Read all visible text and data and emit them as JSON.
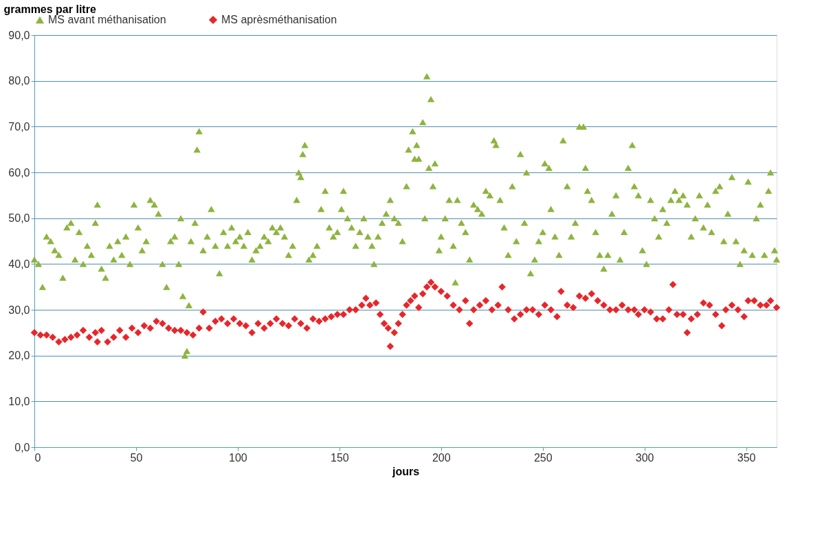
{
  "chart_data": {
    "type": "scatter",
    "xlabel": "jours",
    "ylabel": "grammes par litre",
    "xlim": [
      0,
      365
    ],
    "xticks": [
      0,
      50,
      100,
      150,
      200,
      250,
      300,
      350
    ],
    "ylim": [
      0,
      90
    ],
    "yticks": [
      {
        "value": 0,
        "label": "0,0"
      },
      {
        "value": 10,
        "label": "10,0"
      },
      {
        "value": 20,
        "label": "20,0"
      },
      {
        "value": 30,
        "label": "30,0"
      },
      {
        "value": 40,
        "label": "40,0"
      },
      {
        "value": 50,
        "label": "50,0"
      },
      {
        "value": 60,
        "label": "60,0"
      },
      {
        "value": 70,
        "label": "70,0"
      },
      {
        "value": 80,
        "label": "80,0"
      },
      {
        "value": 90,
        "label": "90,0"
      }
    ],
    "grid": "y",
    "legend": "top",
    "series": [
      {
        "name": "MS avant méthanisation",
        "color": "#8db43e",
        "marker": "triangle",
        "x": [
          0,
          2,
          4,
          6,
          8,
          10,
          12,
          14,
          16,
          18,
          20,
          22,
          24,
          26,
          28,
          30,
          31,
          33,
          35,
          37,
          39,
          41,
          43,
          45,
          47,
          49,
          51,
          53,
          55,
          57,
          59,
          61,
          63,
          65,
          67,
          69,
          71,
          72,
          73,
          74,
          75,
          76,
          77,
          79,
          80,
          81,
          83,
          85,
          87,
          89,
          91,
          93,
          95,
          97,
          99,
          101,
          103,
          105,
          107,
          109,
          111,
          113,
          115,
          117,
          119,
          121,
          123,
          125,
          127,
          129,
          130,
          131,
          132,
          133,
          135,
          137,
          139,
          141,
          143,
          145,
          147,
          149,
          151,
          152,
          154,
          156,
          158,
          160,
          162,
          164,
          166,
          167,
          169,
          171,
          173,
          175,
          177,
          179,
          181,
          183,
          184,
          186,
          187,
          188,
          189,
          191,
          192,
          193,
          194,
          195,
          196,
          197,
          199,
          200,
          202,
          204,
          206,
          207,
          208,
          210,
          212,
          214,
          216,
          218,
          220,
          222,
          224,
          226,
          227,
          229,
          231,
          233,
          235,
          237,
          239,
          241,
          242,
          244,
          246,
          248,
          250,
          251,
          253,
          254,
          256,
          258,
          260,
          262,
          264,
          266,
          268,
          270,
          271,
          272,
          274,
          276,
          278,
          280,
          282,
          284,
          286,
          288,
          290,
          292,
          294,
          295,
          297,
          299,
          301,
          303,
          305,
          307,
          309,
          311,
          313,
          315,
          317,
          319,
          321,
          323,
          325,
          327,
          329,
          331,
          333,
          335,
          337,
          339,
          341,
          343,
          345,
          347,
          349,
          351,
          353,
          355,
          357,
          359,
          361,
          362,
          364,
          365
        ],
        "values": [
          41,
          40,
          35,
          46,
          45,
          43,
          42,
          37,
          48,
          49,
          41,
          47,
          40,
          44,
          42,
          49,
          53,
          39,
          37,
          44,
          41,
          45,
          42,
          46,
          40,
          53,
          48,
          43,
          45,
          54,
          53,
          51,
          40,
          35,
          45,
          46,
          40,
          50,
          33,
          20,
          21,
          31,
          45,
          49,
          65,
          69,
          43,
          46,
          52,
          44,
          38,
          47,
          44,
          48,
          45,
          46,
          44,
          47,
          41,
          43,
          44,
          46,
          45,
          48,
          47,
          48,
          46,
          42,
          44,
          54,
          60,
          59,
          64,
          66,
          41,
          42,
          44,
          52,
          56,
          48,
          46,
          47,
          52,
          56,
          50,
          48,
          44,
          47,
          50,
          46,
          44,
          40,
          46,
          49,
          51,
          54,
          50,
          49,
          45,
          57,
          65,
          69,
          63,
          66,
          63,
          71,
          50,
          81,
          61,
          76,
          57,
          62,
          43,
          46,
          50,
          54,
          44,
          36,
          54,
          49,
          47,
          41,
          53,
          52,
          51,
          56,
          55,
          67,
          66,
          54,
          48,
          42,
          57,
          45,
          64,
          49,
          60,
          38,
          41,
          45,
          47,
          62,
          61,
          52,
          46,
          42,
          67,
          57,
          46,
          49,
          70,
          70,
          61,
          56,
          54,
          47,
          42,
          39,
          42,
          51,
          55,
          41,
          47,
          61,
          66,
          57,
          55,
          43,
          40,
          54,
          50,
          46,
          52,
          49,
          54,
          56,
          54,
          55,
          53,
          46,
          50,
          55,
          48,
          53,
          47,
          56,
          57,
          45,
          51,
          59,
          45,
          40,
          43,
          58,
          42,
          50,
          53,
          42,
          56,
          60,
          43,
          41
        ]
      },
      {
        "name": "MS aprèsméthanisation",
        "color": "#e8262a",
        "marker": "diamond",
        "x": [
          0,
          3,
          6,
          9,
          12,
          15,
          18,
          21,
          24,
          27,
          30,
          31,
          33,
          36,
          39,
          42,
          45,
          48,
          51,
          54,
          57,
          60,
          63,
          66,
          69,
          72,
          75,
          78,
          81,
          83,
          86,
          89,
          92,
          95,
          98,
          101,
          104,
          107,
          110,
          113,
          116,
          119,
          122,
          125,
          128,
          131,
          134,
          137,
          140,
          143,
          146,
          149,
          152,
          155,
          158,
          161,
          163,
          165,
          168,
          170,
          172,
          174,
          175,
          177,
          179,
          181,
          183,
          185,
          187,
          189,
          191,
          193,
          195,
          197,
          200,
          203,
          206,
          209,
          212,
          214,
          216,
          219,
          222,
          225,
          228,
          230,
          233,
          236,
          239,
          242,
          245,
          248,
          251,
          254,
          257,
          259,
          262,
          265,
          268,
          271,
          274,
          277,
          280,
          283,
          286,
          289,
          292,
          295,
          297,
          300,
          303,
          306,
          309,
          312,
          314,
          316,
          319,
          321,
          323,
          326,
          329,
          332,
          335,
          338,
          340,
          343,
          346,
          349,
          351,
          354,
          357,
          360,
          362,
          365
        ],
        "values": [
          25,
          24.5,
          24.5,
          24,
          23,
          23.5,
          24,
          24.5,
          25.5,
          24,
          25,
          23,
          25.5,
          23,
          24,
          25.5,
          24,
          26,
          25,
          26.5,
          26,
          27.5,
          27,
          26,
          25.5,
          25.5,
          25,
          24.5,
          26,
          29.5,
          26,
          27.5,
          28,
          27,
          28,
          27,
          26.5,
          25,
          27,
          26,
          27,
          28,
          27,
          26.5,
          28,
          27,
          26,
          28,
          27.5,
          28,
          28.5,
          29,
          29,
          30,
          30,
          31,
          32.5,
          31,
          31.5,
          29,
          27,
          26,
          22,
          25,
          27,
          29,
          31,
          32,
          33,
          30.5,
          33.5,
          35,
          36,
          35,
          34,
          33,
          31,
          30,
          32,
          27,
          30,
          31,
          32,
          30,
          31,
          35,
          30,
          28,
          29,
          30,
          30,
          29,
          31,
          30,
          28.5,
          34,
          31,
          30.5,
          33,
          32.5,
          33.5,
          32,
          31,
          30,
          30,
          31,
          30,
          30,
          29,
          30,
          29.5,
          28,
          28,
          30,
          35.5,
          29,
          29,
          25,
          28,
          29,
          31.5,
          31,
          29,
          26.5,
          30,
          31,
          30,
          28.5,
          32,
          32,
          31,
          31,
          32,
          30.5
        ]
      }
    ]
  }
}
